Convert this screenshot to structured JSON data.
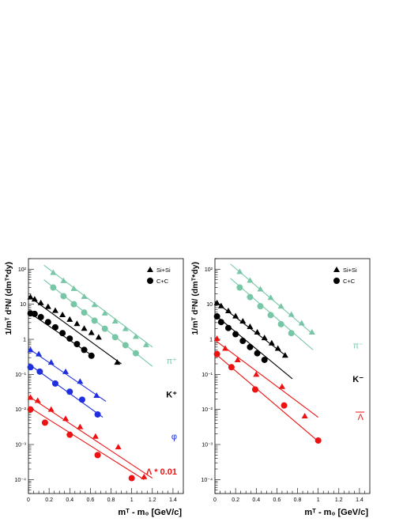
{
  "chart_data": [
    {
      "type": "scatter",
      "panel": "left",
      "xlabel": "mᵀ - m₀ [GeV/c]",
      "ylabel": "1/mᵀ d²N/ (dmᵀ*dy)",
      "xlim": [
        0,
        1.5
      ],
      "ylim": [
        4e-05,
        200
      ],
      "yscale": "log",
      "xticks": [
        "0",
        "0.2",
        "0.4",
        "0.6",
        "0.8",
        "1",
        "1.2",
        "1.4"
      ],
      "yticks": [
        "10⁻⁴",
        "10⁻³",
        "10⁻²",
        "10⁻¹",
        "1",
        "10",
        "10²"
      ],
      "legend": {
        "placement": "top-right",
        "entries": [
          "Si+Si",
          "C+C"
        ]
      },
      "labels": [
        {
          "text": "π⁺",
          "color": "#77c6a6",
          "y": 0.2
        },
        {
          "text": "K⁺",
          "color": "#000000",
          "y": 0.022
        },
        {
          "text": "φ",
          "color": "#1f2fdf",
          "y": 0.0014
        },
        {
          "text": "Λ * 0.01",
          "color": "#ee1111",
          "y": 0.00014
        }
      ],
      "series": [
        {
          "particle": "pi+",
          "system": "Si+Si",
          "marker": "triangle",
          "color": "#77c6a6",
          "x": [
            0.24,
            0.34,
            0.44,
            0.54,
            0.64,
            0.74,
            0.84,
            0.94,
            1.04,
            1.14
          ],
          "y": [
            80,
            47,
            28,
            16.5,
            9.7,
            5.6,
            3.3,
            2.0,
            1.2,
            0.7
          ],
          "fit": {
            "x": [
              0.15,
              1.2
            ],
            "y": [
              130,
              0.6
            ]
          }
        },
        {
          "particle": "pi+",
          "system": "C+C",
          "marker": "circle",
          "color": "#77c6a6",
          "x": [
            0.24,
            0.34,
            0.44,
            0.54,
            0.64,
            0.74,
            0.84,
            0.94,
            1.04
          ],
          "y": [
            30,
            17,
            10,
            5.8,
            3.4,
            2.0,
            1.15,
            0.68,
            0.4
          ],
          "fit": {
            "x": [
              0.15,
              1.2
            ],
            "y": [
              50,
              0.17
            ]
          }
        },
        {
          "particle": "K+",
          "system": "Si+Si",
          "marker": "triangle",
          "color": "#000000",
          "x": [
            0.02,
            0.06,
            0.12,
            0.19,
            0.26,
            0.33,
            0.4,
            0.47,
            0.54,
            0.61,
            0.68,
            0.86
          ],
          "y": [
            16,
            14,
            11,
            8.6,
            6.6,
            5.0,
            3.7,
            2.8,
            2.05,
            1.55,
            1.15,
            0.22
          ],
          "fit": {
            "x": [
              0.0,
              0.9
            ],
            "y": [
              17,
              0.2
            ]
          }
        },
        {
          "particle": "K+",
          "system": "C+C",
          "marker": "circle",
          "color": "#000000",
          "x": [
            0.02,
            0.06,
            0.12,
            0.19,
            0.26,
            0.33,
            0.4,
            0.47,
            0.54,
            0.61
          ],
          "y": [
            5.5,
            5.3,
            4.3,
            3.1,
            2.2,
            1.5,
            1.05,
            0.73,
            0.5,
            0.34
          ],
          "fit": {
            "x": [
              0.0,
              0.62
            ],
            "y": [
              6,
              0.34
            ]
          }
        },
        {
          "particle": "phi",
          "system": "Si+Si",
          "marker": "triangle",
          "color": "#1f2fdf",
          "x": [
            0.02,
            0.1,
            0.22,
            0.36,
            0.5,
            0.66
          ],
          "y": [
            0.5,
            0.38,
            0.22,
            0.12,
            0.063,
            0.025
          ],
          "fit": {
            "x": [
              0.0,
              0.75
            ],
            "y": [
              0.55,
              0.017
            ]
          }
        },
        {
          "particle": "phi",
          "system": "C+C",
          "marker": "circle",
          "color": "#1f2fdf",
          "x": [
            0.02,
            0.11,
            0.26,
            0.4,
            0.52,
            0.67
          ],
          "y": [
            0.16,
            0.12,
            0.055,
            0.032,
            0.019,
            0.0072
          ],
          "fit": {
            "x": [
              0.0,
              0.72
            ],
            "y": [
              0.2,
              0.006
            ]
          }
        },
        {
          "particle": "Lambda",
          "system": "Si+Si",
          "marker": "triangle",
          "color": "#ee1111",
          "x": [
            0.02,
            0.09,
            0.22,
            0.36,
            0.5,
            0.65,
            0.87,
            1.12
          ],
          "y": [
            0.022,
            0.018,
            0.01,
            0.0055,
            0.0032,
            0.0017,
            0.00085,
            0.00012
          ],
          "fit": {
            "x": [
              0.0,
              1.2
            ],
            "y": [
              0.024,
              0.00011
            ]
          }
        },
        {
          "particle": "Lambda",
          "system": "C+C",
          "marker": "circle",
          "color": "#ee1111",
          "x": [
            0.02,
            0.16,
            0.4,
            0.67,
            1.0
          ],
          "y": [
            0.01,
            0.0042,
            0.0019,
            0.0005,
            0.00011
          ],
          "fit": {
            "x": [
              0.0,
              1.12
            ],
            "y": [
              0.012,
              0.0001
            ]
          }
        }
      ]
    },
    {
      "type": "scatter",
      "panel": "right",
      "xlabel": "mᵀ - m₀ [GeV/c]",
      "ylabel": "1/mᵀ d²N/ (dmᵀ*dy)",
      "xlim": [
        0,
        1.5
      ],
      "ylim": [
        4e-05,
        200
      ],
      "yscale": "log",
      "xticks": [
        "0",
        "0.2",
        "0.4",
        "0.6",
        "0.8",
        "1",
        "1.2",
        "1.4"
      ],
      "yticks": [
        "10⁻⁴",
        "10⁻³",
        "10⁻²",
        "10⁻¹",
        "1",
        "10",
        "10²"
      ],
      "legend": {
        "placement": "top-right",
        "entries": [
          "Si+Si",
          "C+C"
        ]
      },
      "labels": [
        {
          "text": "π⁻",
          "color": "#77c6a6",
          "y": 0.55
        },
        {
          "text": "K⁻",
          "color": "#000000",
          "y": 0.06
        },
        {
          "text": "Λ",
          "color": "#ee1111",
          "y": 0.005,
          "overline": true
        }
      ],
      "series": [
        {
          "particle": "pi-",
          "system": "Si+Si",
          "marker": "triangle",
          "color": "#77c6a6",
          "x": [
            0.24,
            0.34,
            0.44,
            0.54,
            0.64,
            0.74,
            0.84,
            0.94
          ],
          "y": [
            85,
            48,
            27,
            15.5,
            8.8,
            5.1,
            2.9,
            1.6
          ],
          "fit": {
            "x": [
              0.15,
              0.95
            ],
            "y": [
              140,
              1.4
            ]
          }
        },
        {
          "particle": "pi-",
          "system": "C+C",
          "marker": "circle",
          "color": "#77c6a6",
          "x": [
            0.24,
            0.34,
            0.44,
            0.54,
            0.64,
            0.74
          ],
          "y": [
            30,
            16,
            8.8,
            4.9,
            2.7,
            1.5
          ],
          "fit": {
            "x": [
              0.15,
              0.95
            ],
            "y": [
              55,
              0.5
            ]
          }
        },
        {
          "particle": "K-",
          "system": "Si+Si",
          "marker": "triangle",
          "color": "#000000",
          "x": [
            0.02,
            0.06,
            0.13,
            0.2,
            0.27,
            0.34,
            0.41,
            0.48,
            0.55,
            0.61,
            0.68
          ],
          "y": [
            11,
            9,
            6.5,
            4.6,
            3.3,
            2.3,
            1.6,
            1.1,
            0.78,
            0.55,
            0.35
          ],
          "fit": {
            "x": [
              0.0,
              0.7
            ],
            "y": [
              12,
              0.32
            ]
          }
        },
        {
          "particle": "K-",
          "system": "C+C",
          "marker": "circle",
          "color": "#000000",
          "x": [
            0.02,
            0.06,
            0.13,
            0.2,
            0.27,
            0.34,
            0.41,
            0.48
          ],
          "y": [
            4.5,
            3.1,
            2.1,
            1.4,
            0.9,
            0.6,
            0.4,
            0.26
          ],
          "fit": {
            "x": [
              0.0,
              0.75
            ],
            "y": [
              5,
              0.075
            ]
          }
        },
        {
          "particle": "anti-Lambda",
          "system": "Si+Si",
          "marker": "triangle",
          "color": "#ee1111",
          "x": [
            0.02,
            0.1,
            0.22,
            0.4,
            0.65,
            0.87
          ],
          "y": [
            1.05,
            0.55,
            0.26,
            0.1,
            0.045,
            0.0065
          ],
          "fit": {
            "x": [
              0.0,
              1.0
            ],
            "y": [
              0.95,
              0.006
            ]
          }
        },
        {
          "particle": "anti-Lambda",
          "system": "C+C",
          "marker": "circle",
          "color": "#ee1111",
          "x": [
            0.02,
            0.16,
            0.39,
            0.67,
            1.0
          ],
          "y": [
            0.38,
            0.16,
            0.037,
            0.013,
            0.0013
          ],
          "fit": {
            "x": [
              0.0,
              1.02
            ],
            "y": [
              0.4,
              0.0011
            ]
          }
        }
      ]
    }
  ]
}
